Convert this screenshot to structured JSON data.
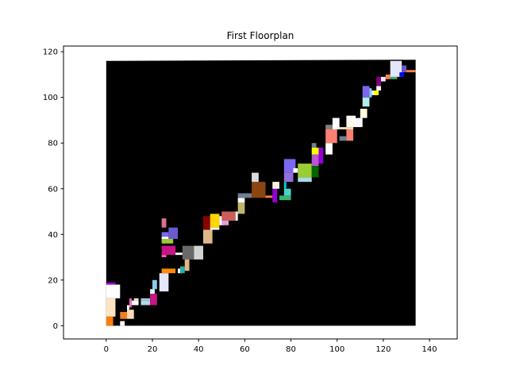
{
  "chart_data": {
    "type": "floorplan",
    "title": "First Floorplan",
    "xlabel": "",
    "ylabel": "",
    "xlim": [
      -18.5,
      152
    ],
    "ylim": [
      -5.8,
      122.5
    ],
    "xticks": [
      0,
      20,
      40,
      60,
      80,
      100,
      120,
      140
    ],
    "yticks": [
      0,
      20,
      40,
      60,
      80,
      100,
      120
    ],
    "grid": false,
    "outline": {
      "color": "#000000",
      "points": [
        [
          0,
          0
        ],
        [
          134,
          0
        ],
        [
          134,
          116.5
        ],
        [
          0,
          116
        ]
      ]
    },
    "blocks": [
      {
        "x": 0,
        "y": 0,
        "w": 3,
        "h": 4,
        "color": "#ff7f0e"
      },
      {
        "x": 0,
        "y": 4,
        "w": 4,
        "h": 8,
        "color": "#ffe4c4"
      },
      {
        "x": 0,
        "y": 12,
        "w": 6,
        "h": 6,
        "color": "#ffffff"
      },
      {
        "x": 0,
        "y": 18,
        "w": 4,
        "h": 1,
        "color": "#9400d3"
      },
      {
        "x": 6,
        "y": 0,
        "w": 2,
        "h": 2,
        "color": "#ffffff"
      },
      {
        "x": 6,
        "y": 3,
        "w": 3,
        "h": 3,
        "color": "#f08020"
      },
      {
        "x": 9,
        "y": 3,
        "w": 3,
        "h": 4,
        "color": "#ffdab9"
      },
      {
        "x": 9,
        "y": 7,
        "w": 1,
        "h": 2,
        "color": "#ffffff"
      },
      {
        "x": 10,
        "y": 8,
        "w": 1,
        "h": 4,
        "color": "#ff69b4"
      },
      {
        "x": 11,
        "y": 9,
        "w": 3,
        "h": 2,
        "color": "#ffffff"
      },
      {
        "x": 12,
        "y": 11,
        "w": 2,
        "h": 1,
        "color": "#ffe4c4"
      },
      {
        "x": 15,
        "y": 9,
        "w": 4,
        "h": 2,
        "color": "#add8e6"
      },
      {
        "x": 15,
        "y": 11,
        "w": 4,
        "h": 1,
        "color": "#b0c4de"
      },
      {
        "x": 19,
        "y": 9,
        "w": 3,
        "h": 5,
        "color": "#c71585"
      },
      {
        "x": 19,
        "y": 14,
        "w": 2,
        "h": 2,
        "color": "#e0ffff"
      },
      {
        "x": 20,
        "y": 16,
        "w": 2,
        "h": 4,
        "color": "#87ceeb"
      },
      {
        "x": 23,
        "y": 15,
        "w": 4,
        "h": 8,
        "color": "#e6e6fa"
      },
      {
        "x": 24,
        "y": 23,
        "w": 6,
        "h": 2,
        "color": "#ff8c00"
      },
      {
        "x": 31,
        "y": 23,
        "w": 2,
        "h": 2,
        "color": "#ffffff"
      },
      {
        "x": 32,
        "y": 23,
        "w": 2,
        "h": 3,
        "color": "#20b2aa"
      },
      {
        "x": 34,
        "y": 24,
        "w": 2,
        "h": 6,
        "color": "#deb887"
      },
      {
        "x": 24,
        "y": 30,
        "w": 2,
        "h": 1,
        "color": "#ff69b4"
      },
      {
        "x": 24,
        "y": 31,
        "w": 6,
        "h": 4,
        "color": "#c71585"
      },
      {
        "x": 30,
        "y": 31,
        "w": 3,
        "h": 1,
        "color": "#ffffff"
      },
      {
        "x": 33,
        "y": 29,
        "w": 5,
        "h": 6,
        "color": "#696969"
      },
      {
        "x": 38,
        "y": 29,
        "w": 4,
        "h": 6,
        "color": "#d3d3d3"
      },
      {
        "x": 24,
        "y": 36,
        "w": 5,
        "h": 2,
        "color": "#9acd32"
      },
      {
        "x": 24,
        "y": 38,
        "w": 3,
        "h": 1,
        "color": "#ffffff"
      },
      {
        "x": 24,
        "y": 39,
        "w": 3,
        "h": 2,
        "color": "#7b68ee"
      },
      {
        "x": 27,
        "y": 38,
        "w": 4,
        "h": 5,
        "color": "#6a5acd"
      },
      {
        "x": 24,
        "y": 43,
        "w": 2,
        "h": 4,
        "color": "#db7093"
      },
      {
        "x": 42,
        "y": 36,
        "w": 4,
        "h": 6,
        "color": "#deb887"
      },
      {
        "x": 42,
        "y": 42,
        "w": 3,
        "h": 6,
        "color": "#8b0000"
      },
      {
        "x": 45,
        "y": 42,
        "w": 4,
        "h": 1,
        "color": "#ffffff"
      },
      {
        "x": 45,
        "y": 43,
        "w": 4,
        "h": 6,
        "color": "#ffd700"
      },
      {
        "x": 49,
        "y": 44,
        "w": 2,
        "h": 4,
        "color": "#ffffff"
      },
      {
        "x": 50,
        "y": 44,
        "w": 3,
        "h": 2,
        "color": "#dda0dd"
      },
      {
        "x": 50,
        "y": 46,
        "w": 6,
        "h": 4,
        "color": "#cd5c5c"
      },
      {
        "x": 56,
        "y": 46,
        "w": 1,
        "h": 4,
        "color": "#ffffff"
      },
      {
        "x": 57,
        "y": 49,
        "w": 3,
        "h": 5,
        "color": "#bdb76b"
      },
      {
        "x": 57,
        "y": 54,
        "w": 3,
        "h": 2,
        "color": "#ffffff"
      },
      {
        "x": 57,
        "y": 56,
        "w": 6,
        "h": 2,
        "color": "#708090"
      },
      {
        "x": 63,
        "y": 56,
        "w": 6,
        "h": 7,
        "color": "#8b4513"
      },
      {
        "x": 63,
        "y": 63,
        "w": 3,
        "h": 4,
        "color": "#dcdcdc"
      },
      {
        "x": 69,
        "y": 56,
        "w": 3,
        "h": 1,
        "color": "#ff7f50"
      },
      {
        "x": 72,
        "y": 54,
        "w": 2,
        "h": 6,
        "color": "#9400d3"
      },
      {
        "x": 72,
        "y": 60,
        "w": 3,
        "h": 1,
        "color": "#ffffff"
      },
      {
        "x": 72,
        "y": 61,
        "w": 3,
        "h": 2,
        "color": "#fff8dc"
      },
      {
        "x": 75,
        "y": 55,
        "w": 5,
        "h": 2,
        "color": "#3cb371"
      },
      {
        "x": 77,
        "y": 57,
        "w": 3,
        "h": 3,
        "color": "#48d1cc"
      },
      {
        "x": 77,
        "y": 60,
        "w": 1,
        "h": 3,
        "color": "#00ced1"
      },
      {
        "x": 77,
        "y": 63,
        "w": 4,
        "h": 4,
        "color": "#9370db"
      },
      {
        "x": 77,
        "y": 67,
        "w": 5,
        "h": 6,
        "color": "#7b68ee"
      },
      {
        "x": 81,
        "y": 67,
        "w": 2,
        "h": 2,
        "color": "#ffffff"
      },
      {
        "x": 83,
        "y": 63,
        "w": 6,
        "h": 2,
        "color": "#add8e6"
      },
      {
        "x": 83,
        "y": 65,
        "w": 6,
        "h": 6,
        "color": "#9acd32"
      },
      {
        "x": 89,
        "y": 65,
        "w": 3,
        "h": 5,
        "color": "#006400"
      },
      {
        "x": 89,
        "y": 70,
        "w": 3,
        "h": 5,
        "color": "#ba55d3"
      },
      {
        "x": 92,
        "y": 71,
        "w": 2,
        "h": 7,
        "color": "#9400d3"
      },
      {
        "x": 89,
        "y": 75,
        "w": 3,
        "h": 3,
        "color": "#ffff00"
      },
      {
        "x": 89,
        "y": 78,
        "w": 2,
        "h": 2,
        "color": "#708090"
      },
      {
        "x": 95,
        "y": 75,
        "w": 3,
        "h": 5,
        "color": "#ffffff"
      },
      {
        "x": 95,
        "y": 80,
        "w": 5,
        "h": 6,
        "color": "#fa8072"
      },
      {
        "x": 95,
        "y": 86,
        "w": 3,
        "h": 2,
        "color": "#808080"
      },
      {
        "x": 98,
        "y": 86,
        "w": 3,
        "h": 5,
        "color": "#ffffff"
      },
      {
        "x": 101,
        "y": 81,
        "w": 3,
        "h": 2,
        "color": "#708090"
      },
      {
        "x": 104,
        "y": 81,
        "w": 3,
        "h": 5,
        "color": "#fa8072"
      },
      {
        "x": 101,
        "y": 86,
        "w": 6,
        "h": 1,
        "color": "#f5deb3"
      },
      {
        "x": 104,
        "y": 87,
        "w": 4,
        "h": 5,
        "color": "#fffaf0"
      },
      {
        "x": 108,
        "y": 87,
        "w": 3,
        "h": 4,
        "color": "#f8f8ff"
      },
      {
        "x": 110,
        "y": 91,
        "w": 3,
        "h": 4,
        "color": "#ffffe0"
      },
      {
        "x": 111,
        "y": 96,
        "w": 3,
        "h": 4,
        "color": "#afeeee"
      },
      {
        "x": 111,
        "y": 100,
        "w": 3,
        "h": 5,
        "color": "#7b68ee"
      },
      {
        "x": 114,
        "y": 100,
        "w": 1,
        "h": 4,
        "color": "#87ceeb"
      },
      {
        "x": 115,
        "y": 101,
        "w": 2,
        "h": 2,
        "color": "#ffffff"
      },
      {
        "x": 116,
        "y": 101,
        "w": 2,
        "h": 2,
        "color": "#ffff00"
      },
      {
        "x": 117,
        "y": 103,
        "w": 2,
        "h": 2,
        "color": "#fffff0"
      },
      {
        "x": 117,
        "y": 105,
        "w": 2,
        "h": 4,
        "color": "#800080"
      },
      {
        "x": 119,
        "y": 107,
        "w": 2,
        "h": 2,
        "color": "#e6e6fa"
      },
      {
        "x": 121,
        "y": 108,
        "w": 2,
        "h": 2,
        "color": "#ff7f50"
      },
      {
        "x": 123,
        "y": 108,
        "w": 3,
        "h": 1,
        "color": "#3cb371"
      },
      {
        "x": 123,
        "y": 109,
        "w": 5,
        "h": 7,
        "color": "#e6e6fa"
      },
      {
        "x": 127,
        "y": 109,
        "w": 2,
        "h": 2,
        "color": "#0000ff"
      },
      {
        "x": 128,
        "y": 111,
        "w": 2,
        "h": 3,
        "color": "#6a5acd"
      },
      {
        "x": 130,
        "y": 111,
        "w": 4,
        "h": 1,
        "color": "#ff7f50"
      }
    ]
  }
}
